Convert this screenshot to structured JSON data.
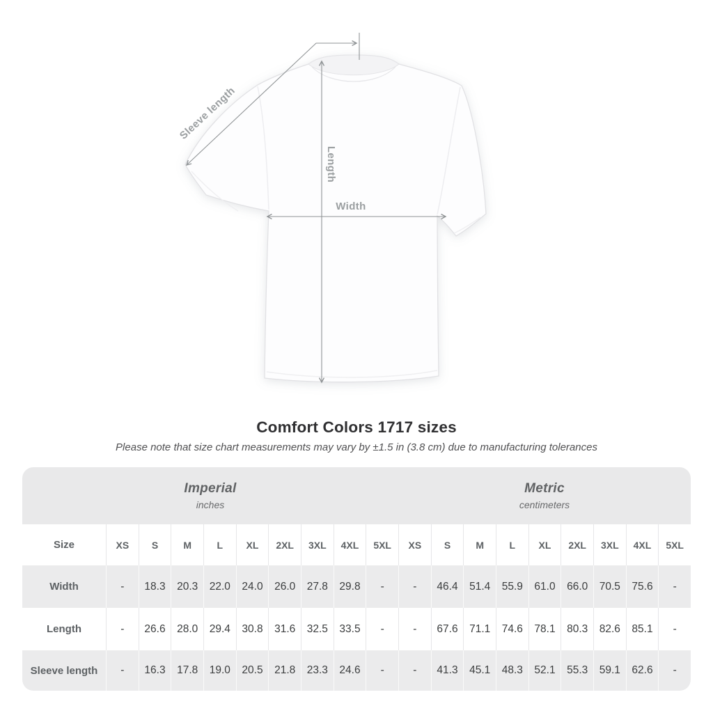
{
  "diagram": {
    "sleeve_length_label": "Sleeve length",
    "length_label": "Length",
    "width_label": "Width"
  },
  "heading": {
    "title": "Comfort Colors 1717 sizes",
    "note": "Please note that size chart measurements may vary by ±1.5 in (3.8 cm) due to manufacturing tolerances"
  },
  "table": {
    "corner_label": "Size",
    "groups": [
      {
        "name": "Imperial",
        "unit": "inches"
      },
      {
        "name": "Metric",
        "unit": "centimeters"
      }
    ],
    "sizes": [
      "XS",
      "S",
      "M",
      "L",
      "XL",
      "2XL",
      "3XL",
      "4XL",
      "5XL"
    ],
    "rows": [
      {
        "label": "Width",
        "imperial": [
          "-",
          "18.3",
          "20.3",
          "22.0",
          "24.0",
          "26.0",
          "27.8",
          "29.8",
          "-"
        ],
        "metric": [
          "-",
          "46.4",
          "51.4",
          "55.9",
          "61.0",
          "66.0",
          "70.5",
          "75.6",
          "-"
        ]
      },
      {
        "label": "Length",
        "imperial": [
          "-",
          "26.6",
          "28.0",
          "29.4",
          "30.8",
          "31.6",
          "32.5",
          "33.5",
          "-"
        ],
        "metric": [
          "-",
          "67.6",
          "71.1",
          "74.6",
          "78.1",
          "80.3",
          "82.6",
          "85.1",
          "-"
        ]
      },
      {
        "label": "Sleeve length",
        "imperial": [
          "-",
          "16.3",
          "17.8",
          "19.0",
          "20.5",
          "21.8",
          "23.3",
          "24.6",
          "-"
        ],
        "metric": [
          "-",
          "41.3",
          "45.1",
          "48.3",
          "52.1",
          "55.3",
          "59.1",
          "62.6",
          "-"
        ]
      }
    ]
  },
  "colors": {
    "band_gray": "#e9e9ea",
    "row_alt_gray": "#ebebec",
    "annotation_gray": "#8f9395",
    "label_gray": "#9a9ea0",
    "value_text": "#3b3d3e",
    "title_text": "#2f2f31"
  }
}
